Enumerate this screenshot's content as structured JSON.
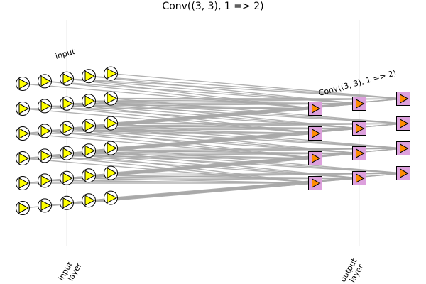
{
  "title": "Conv((3, 3), 1 => 2)",
  "input_group_label": "input",
  "output_group_label": "Conv((3, 3), 1 => 2)",
  "axis_labels": {
    "input": [
      "input",
      "layer"
    ],
    "output": [
      "output",
      "layer"
    ]
  },
  "input_node": {
    "shape": "circle",
    "icon": "play-triangle-icon",
    "fill": "#ffff00"
  },
  "output_node": {
    "shape": "square",
    "icon": "play-triangle-icon",
    "fill": "#dda0dd",
    "icon_fill": "#ff8c00"
  },
  "edge_color": "#a9a9a9",
  "input_grid": {
    "rows": 6,
    "cols": 5
  },
  "output_grid": {
    "rows": 4,
    "cols": 3
  }
}
